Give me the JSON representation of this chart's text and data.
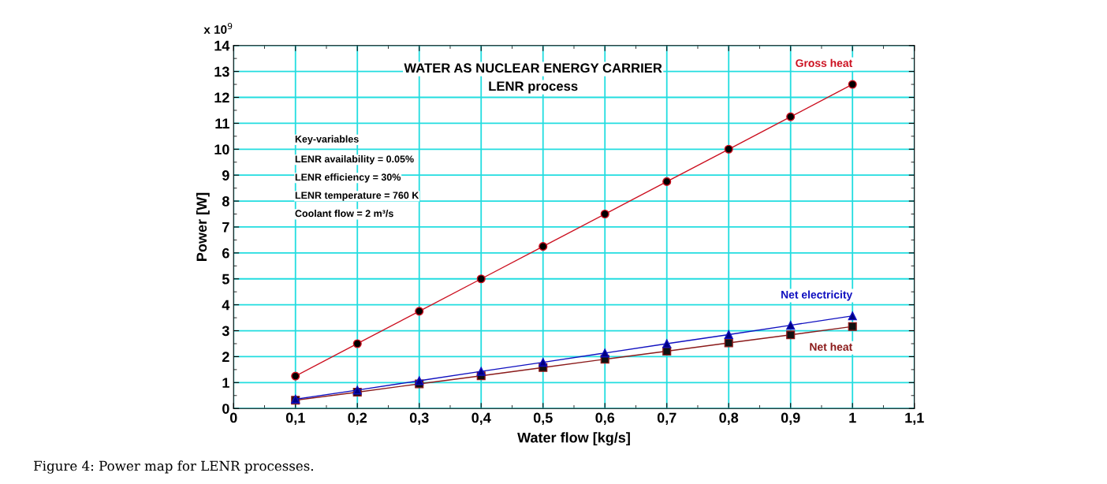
{
  "chart_data": {
    "type": "line",
    "title": "WATER AS NUCLEAR ENERGY CARRIER",
    "subtitle": "LENR process",
    "xlabel": "Water flow [kg/s]",
    "ylabel": "Power [W]",
    "x": [
      0.1,
      0.2,
      0.3,
      0.4,
      0.5,
      0.6,
      0.7,
      0.8,
      0.9,
      1.0
    ],
    "series": [
      {
        "name": "Gross heat",
        "color": "#cc1020",
        "marker": "circle",
        "values": [
          1.25,
          2.5,
          3.75,
          5.0,
          6.25,
          7.5,
          8.75,
          10.0,
          11.25,
          12.5
        ]
      },
      {
        "name": "Net electricity",
        "color": "#1010c0",
        "marker": "triangle",
        "values": [
          0.36,
          0.71,
          1.07,
          1.43,
          1.78,
          2.14,
          2.5,
          2.85,
          3.21,
          3.57
        ]
      },
      {
        "name": "Net heat",
        "color": "#8b1a1a",
        "marker": "square",
        "values": [
          0.32,
          0.63,
          0.95,
          1.26,
          1.58,
          1.9,
          2.21,
          2.53,
          2.84,
          3.16
        ]
      }
    ],
    "xlim": [
      0,
      1.1
    ],
    "xticks": [
      {
        "value": 0,
        "label": "0"
      },
      {
        "value": 0.05,
        "label": null
      },
      {
        "value": 0.1,
        "label": "0,1"
      },
      {
        "value": 0.15,
        "label": null
      },
      {
        "value": 0.2,
        "label": "0,2"
      },
      {
        "value": 0.25,
        "label": null
      },
      {
        "value": 0.3,
        "label": "0,3"
      },
      {
        "value": 0.35,
        "label": null
      },
      {
        "value": 0.4,
        "label": "0,4"
      },
      {
        "value": 0.45,
        "label": null
      },
      {
        "value": 0.5,
        "label": "0,5"
      },
      {
        "value": 0.55,
        "label": null
      },
      {
        "value": 0.6,
        "label": "0,6"
      },
      {
        "value": 0.65,
        "label": null
      },
      {
        "value": 0.7,
        "label": "0,7"
      },
      {
        "value": 0.75,
        "label": null
      },
      {
        "value": 0.8,
        "label": "0,8"
      },
      {
        "value": 0.85,
        "label": null
      },
      {
        "value": 0.9,
        "label": "0,9"
      },
      {
        "value": 0.95,
        "label": null
      },
      {
        "value": 1.0,
        "label": "1"
      },
      {
        "value": 1.05,
        "label": null
      },
      {
        "value": 1.1,
        "label": "1,1"
      }
    ],
    "ylim": [
      0,
      14
    ],
    "yticks": [
      0,
      {
        "value": 0.5,
        "label": null
      },
      1,
      {
        "value": 1.5,
        "label": null
      },
      2,
      {
        "value": 2.5,
        "label": null
      },
      3,
      {
        "value": 3.5,
        "label": null
      },
      4,
      {
        "value": 4.5,
        "label": null
      },
      5,
      {
        "value": 5.5,
        "label": null
      },
      6,
      {
        "value": 6.5,
        "label": null
      },
      7,
      {
        "value": 7.5,
        "label": null
      },
      8,
      {
        "value": 8.5,
        "label": null
      },
      9,
      {
        "value": 9.5,
        "label": null
      },
      10,
      {
        "value": 10.5,
        "label": null
      },
      11,
      {
        "value": 11.5,
        "label": null
      },
      12,
      {
        "value": 12.5,
        "label": null
      },
      13,
      {
        "value": 13.5,
        "label": null
      },
      14
    ],
    "grid": true,
    "line_style": "solid",
    "annotations": [
      "x 10$^{9}$",
      "Key-variables",
      "LENR availability = 0.05%",
      "LENR efficiency = 30%",
      "LENR temperature = 760 K",
      "Coolant flow = 2 m³/s",
      "Figure 4: Power map for LENR processes."
    ]
  }
}
